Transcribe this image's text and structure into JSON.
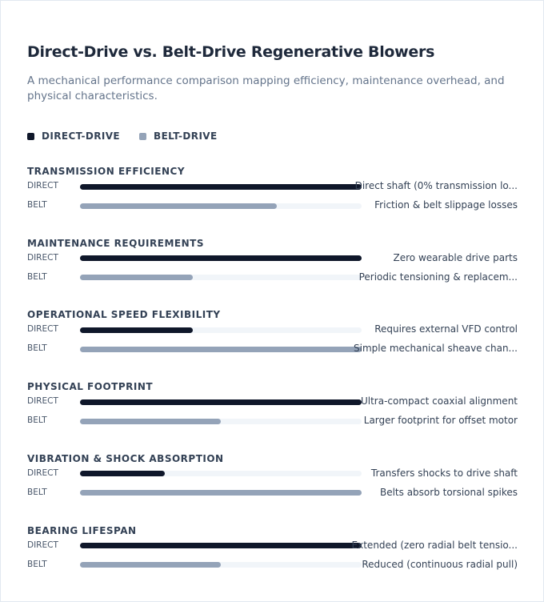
{
  "chart_data": {
    "type": "bar",
    "orientation": "horizontal",
    "title": "Direct-Drive vs. Belt-Drive Regenerative Blowers",
    "subtitle": "A mechanical performance comparison mapping efficiency, maintenance overhead, and physical characteristics.",
    "categories": [
      "TRANSMISSION EFFICIENCY",
      "MAINTENANCE REQUIREMENTS",
      "OPERATIONAL SPEED FLEXIBILITY",
      "PHYSICAL FOOTPRINT",
      "VIBRATION & SHOCK ABSORPTION",
      "BEARING LIFESPAN"
    ],
    "xlim": [
      0,
      100
    ],
    "series": [
      {
        "name": "DIRECT-DRIVE",
        "label": "DIRECT",
        "color": "#0f172a",
        "values": [
          100,
          100,
          40,
          100,
          30,
          100
        ],
        "annotations": [
          "Direct shaft (0% transmission lo...",
          "Zero wearable drive parts",
          "Requires external VFD control",
          "Ultra-compact coaxial alignment",
          "Transfers shocks to drive shaft",
          "Extended (zero radial belt tensio..."
        ]
      },
      {
        "name": "BELT-DRIVE",
        "label": "BELT",
        "color": "#94a3b8",
        "values": [
          70,
          40,
          100,
          50,
          100,
          50
        ],
        "annotations": [
          "Friction & belt slippage losses",
          "Periodic tensioning & replacem...",
          "Simple mechanical sheave chan...",
          "Larger footprint for offset motor",
          "Belts absorb torsional spikes",
          "Reduced (continuous radial pull)"
        ]
      }
    ]
  }
}
